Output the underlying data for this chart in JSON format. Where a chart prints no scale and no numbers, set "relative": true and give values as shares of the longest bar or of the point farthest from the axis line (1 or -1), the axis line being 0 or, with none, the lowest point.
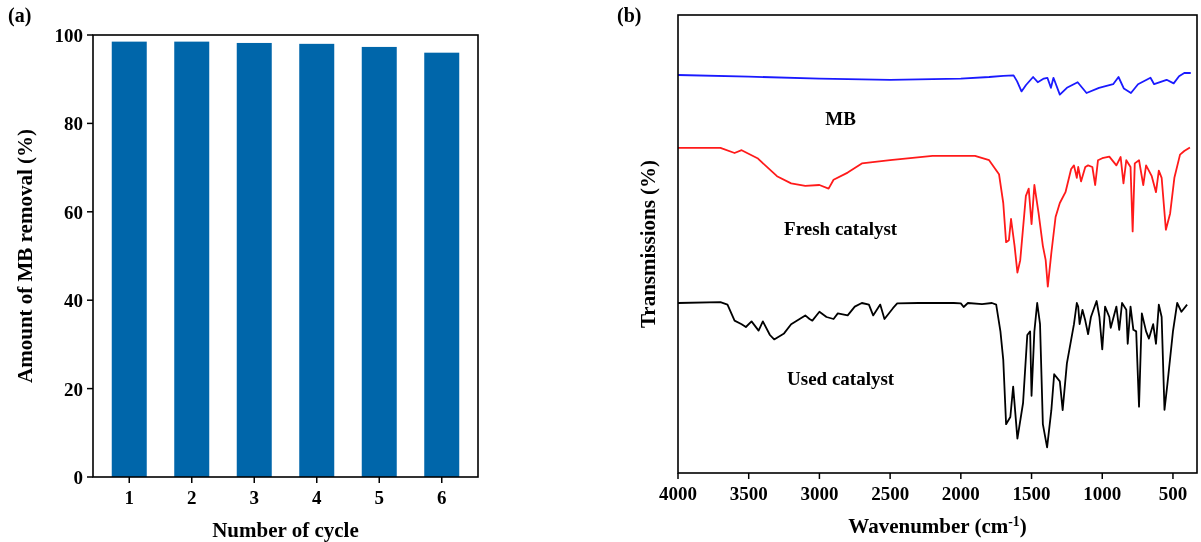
{
  "chart_data": [
    {
      "type": "bar",
      "annotations": [
        "(a)"
      ],
      "xlabel": "Number of cycle",
      "ylabel": "Amount of MB removal (%)",
      "categories": [
        "1",
        "2",
        "3",
        "4",
        "5",
        "6"
      ],
      "values": [
        98.5,
        98.5,
        98.2,
        98.0,
        97.3,
        96.0
      ],
      "color": "#0066aa",
      "ylim": [
        0,
        100
      ],
      "yticks": [
        0,
        20,
        40,
        60,
        80,
        100
      ]
    },
    {
      "type": "line",
      "annotations": [
        "(b)"
      ],
      "xlabel": "Wavenumber (cm$^{-1}$)",
      "ylabel": "Transmissions (%)",
      "relative": true,
      "tick_labels": "x",
      "xlim": [
        4000,
        330
      ],
      "xticks": [
        4000,
        3500,
        3000,
        2500,
        2000,
        1500,
        1000,
        500
      ],
      "marker": "none",
      "line_style": "solid",
      "series": [
        {
          "name": "MB",
          "color": "#1a1aff",
          "x": [
            4000,
            3500,
            3000,
            2500,
            2000,
            1800,
            1700,
            1627,
            1602,
            1571,
            1539,
            1489,
            1456,
            1413,
            1388,
            1363,
            1345,
            1300,
            1250,
            1174,
            1111,
            1023,
            923,
            885,
            847,
            797,
            747,
            659,
            633,
            545,
            495,
            457,
            420,
            374
          ],
          "values": [
            0.995,
            0.991,
            0.986,
            0.983,
            0.986,
            0.99,
            0.993,
            0.994,
            0.979,
            0.954,
            0.97,
            0.99,
            0.977,
            0.986,
            0.988,
            0.963,
            0.988,
            0.946,
            0.963,
            0.977,
            0.95,
            0.963,
            0.972,
            0.99,
            0.961,
            0.95,
            0.972,
            0.988,
            0.972,
            0.983,
            0.974,
            0.992,
            1.0,
            1.0
          ]
        },
        {
          "name": "Fresh catalyst",
          "color": "#ff1a1a",
          "x": [
            4000,
            3700,
            3600,
            3550,
            3438,
            3300,
            3200,
            3100,
            3000,
            2935,
            2900,
            2800,
            2700,
            2500,
            2200,
            1900,
            1800,
            1730,
            1700,
            1680,
            1660,
            1645,
            1620,
            1600,
            1580,
            1540,
            1520,
            1500,
            1480,
            1450,
            1420,
            1400,
            1385,
            1360,
            1330,
            1300,
            1260,
            1220,
            1200,
            1180,
            1170,
            1150,
            1120,
            1100,
            1070,
            1050,
            1030,
            1000,
            950,
            900,
            870,
            850,
            830,
            800,
            785,
            770,
            740,
            710,
            690,
            650,
            620,
            600,
            580,
            550,
            520,
            490,
            450,
            420,
            380
          ],
          "values": [
            0.813,
            0.813,
            0.8,
            0.807,
            0.787,
            0.742,
            0.724,
            0.718,
            0.72,
            0.711,
            0.733,
            0.751,
            0.774,
            0.782,
            0.793,
            0.793,
            0.782,
            0.747,
            0.675,
            0.577,
            0.582,
            0.635,
            0.568,
            0.501,
            0.532,
            0.693,
            0.711,
            0.622,
            0.72,
            0.649,
            0.568,
            0.532,
            0.466,
            0.55,
            0.64,
            0.675,
            0.702,
            0.76,
            0.769,
            0.738,
            0.765,
            0.729,
            0.765,
            0.769,
            0.765,
            0.72,
            0.782,
            0.787,
            0.791,
            0.769,
            0.79,
            0.724,
            0.782,
            0.765,
            0.604,
            0.774,
            0.782,
            0.72,
            0.769,
            0.742,
            0.702,
            0.756,
            0.738,
            0.608,
            0.649,
            0.738,
            0.796,
            0.805,
            0.814
          ]
        },
        {
          "name": "Used catalyst",
          "color": "#000000",
          "x": [
            4000,
            3700,
            3650,
            3600,
            3550,
            3520,
            3480,
            3430,
            3400,
            3350,
            3320,
            3250,
            3200,
            3100,
            3070,
            3050,
            3000,
            2950,
            2900,
            2870,
            2800,
            2750,
            2700,
            2650,
            2620,
            2570,
            2540,
            2480,
            2450,
            2300,
            2050,
            2000,
            1980,
            1950,
            1850,
            1780,
            1750,
            1720,
            1700,
            1680,
            1650,
            1630,
            1600,
            1560,
            1530,
            1510,
            1500,
            1480,
            1460,
            1440,
            1420,
            1390,
            1360,
            1340,
            1300,
            1280,
            1250,
            1200,
            1180,
            1170,
            1160,
            1140,
            1120,
            1100,
            1080,
            1040,
            1020,
            1000,
            980,
            950,
            940,
            900,
            880,
            860,
            830,
            820,
            800,
            780,
            760,
            740,
            720,
            690,
            670,
            640,
            620,
            600,
            580,
            560,
            540,
            500,
            470,
            440,
            400
          ],
          "values": [
            0.425,
            0.427,
            0.421,
            0.381,
            0.372,
            0.365,
            0.379,
            0.356,
            0.379,
            0.345,
            0.334,
            0.349,
            0.372,
            0.394,
            0.385,
            0.381,
            0.403,
            0.39,
            0.385,
            0.399,
            0.394,
            0.416,
            0.425,
            0.421,
            0.394,
            0.421,
            0.385,
            0.412,
            0.424,
            0.425,
            0.425,
            0.424,
            0.415,
            0.425,
            0.422,
            0.425,
            0.421,
            0.354,
            0.283,
            0.122,
            0.14,
            0.216,
            0.086,
            0.175,
            0.345,
            0.354,
            0.193,
            0.354,
            0.425,
            0.372,
            0.122,
            0.064,
            0.157,
            0.247,
            0.229,
            0.157,
            0.274,
            0.372,
            0.425,
            0.416,
            0.372,
            0.408,
            0.381,
            0.347,
            0.39,
            0.43,
            0.39,
            0.309,
            0.416,
            0.39,
            0.363,
            0.416,
            0.358,
            0.425,
            0.408,
            0.323,
            0.416,
            0.358,
            0.354,
            0.166,
            0.399,
            0.354,
            0.336,
            0.372,
            0.323,
            0.421,
            0.39,
            0.158,
            0.22,
            0.354,
            0.425,
            0.403,
            0.421
          ]
        }
      ]
    }
  ]
}
